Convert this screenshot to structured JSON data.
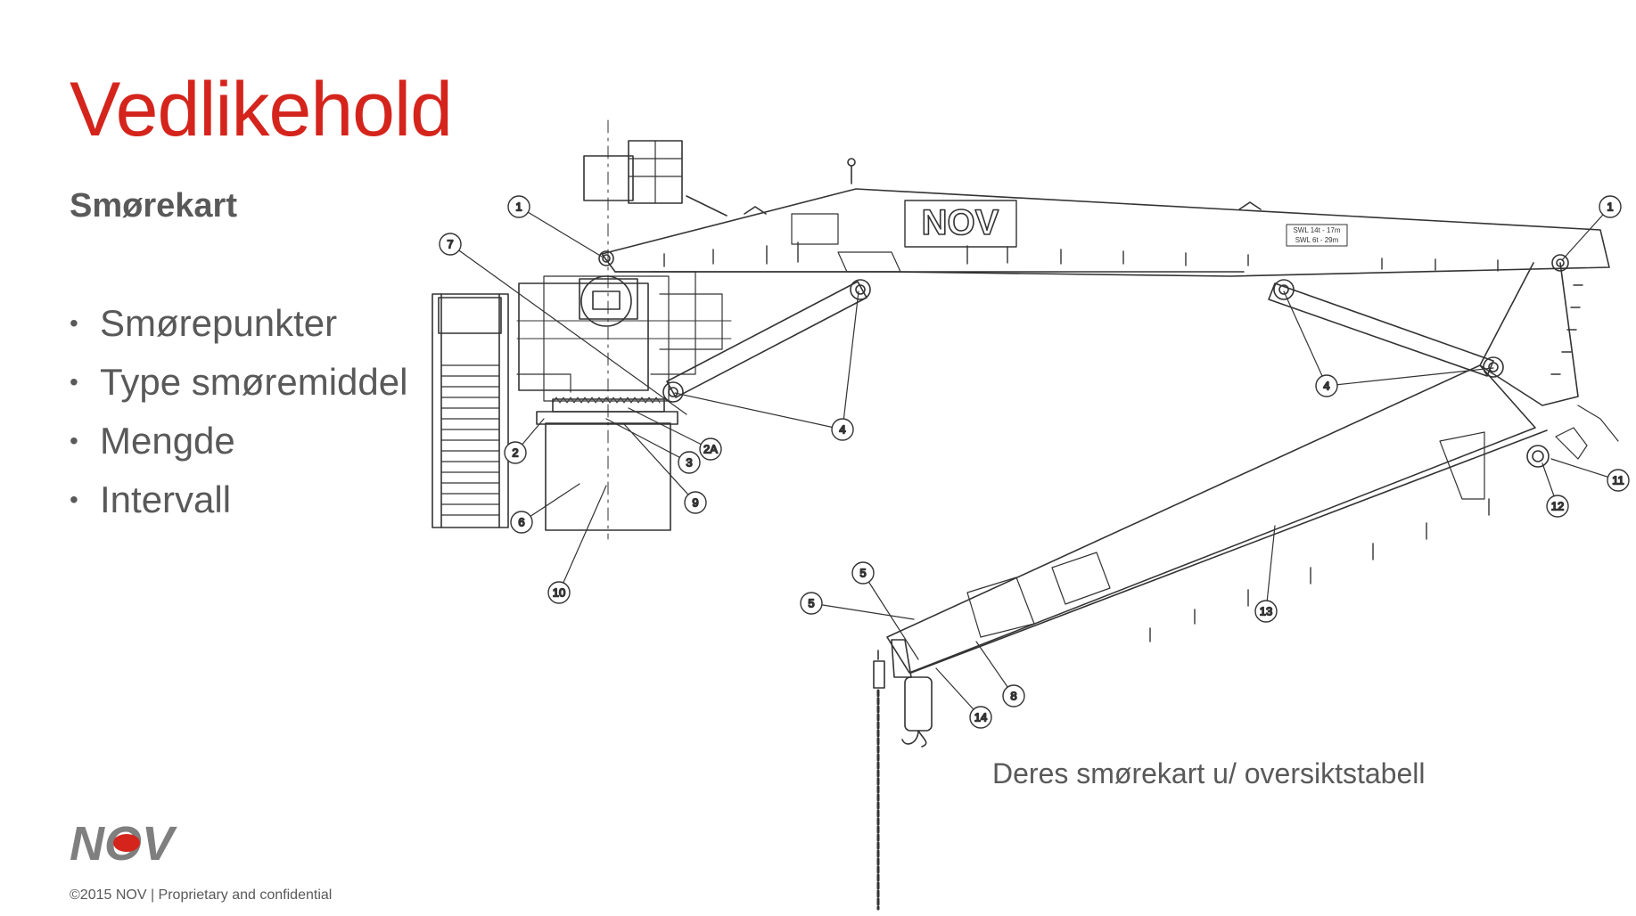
{
  "slide": {
    "title": "Vedlikehold",
    "subtitle": "Smørekart",
    "bullets": [
      "Smørepunkter",
      "Type smøremiddel",
      "Mengde",
      "Intervall"
    ],
    "caption": "Deres smørekart u/ oversiktstabell",
    "footer": "©2015 NOV | Proprietary and confidential"
  },
  "logo": {
    "text": "NOV",
    "color": "#7f7f7f",
    "accent": "#d4241c"
  },
  "diagram": {
    "boom_logo": "NOV",
    "swl_line1": "SWL 14t - 17m",
    "swl_line2": "SWL 6t - 29m",
    "callouts": [
      "1",
      "1",
      "7",
      "2",
      "3",
      "2A",
      "9",
      "6",
      "10",
      "4",
      "4",
      "5",
      "5",
      "8",
      "14",
      "13",
      "11",
      "12"
    ]
  },
  "colors": {
    "title": "#d4241c",
    "text": "#595959",
    "line": "#333333"
  }
}
